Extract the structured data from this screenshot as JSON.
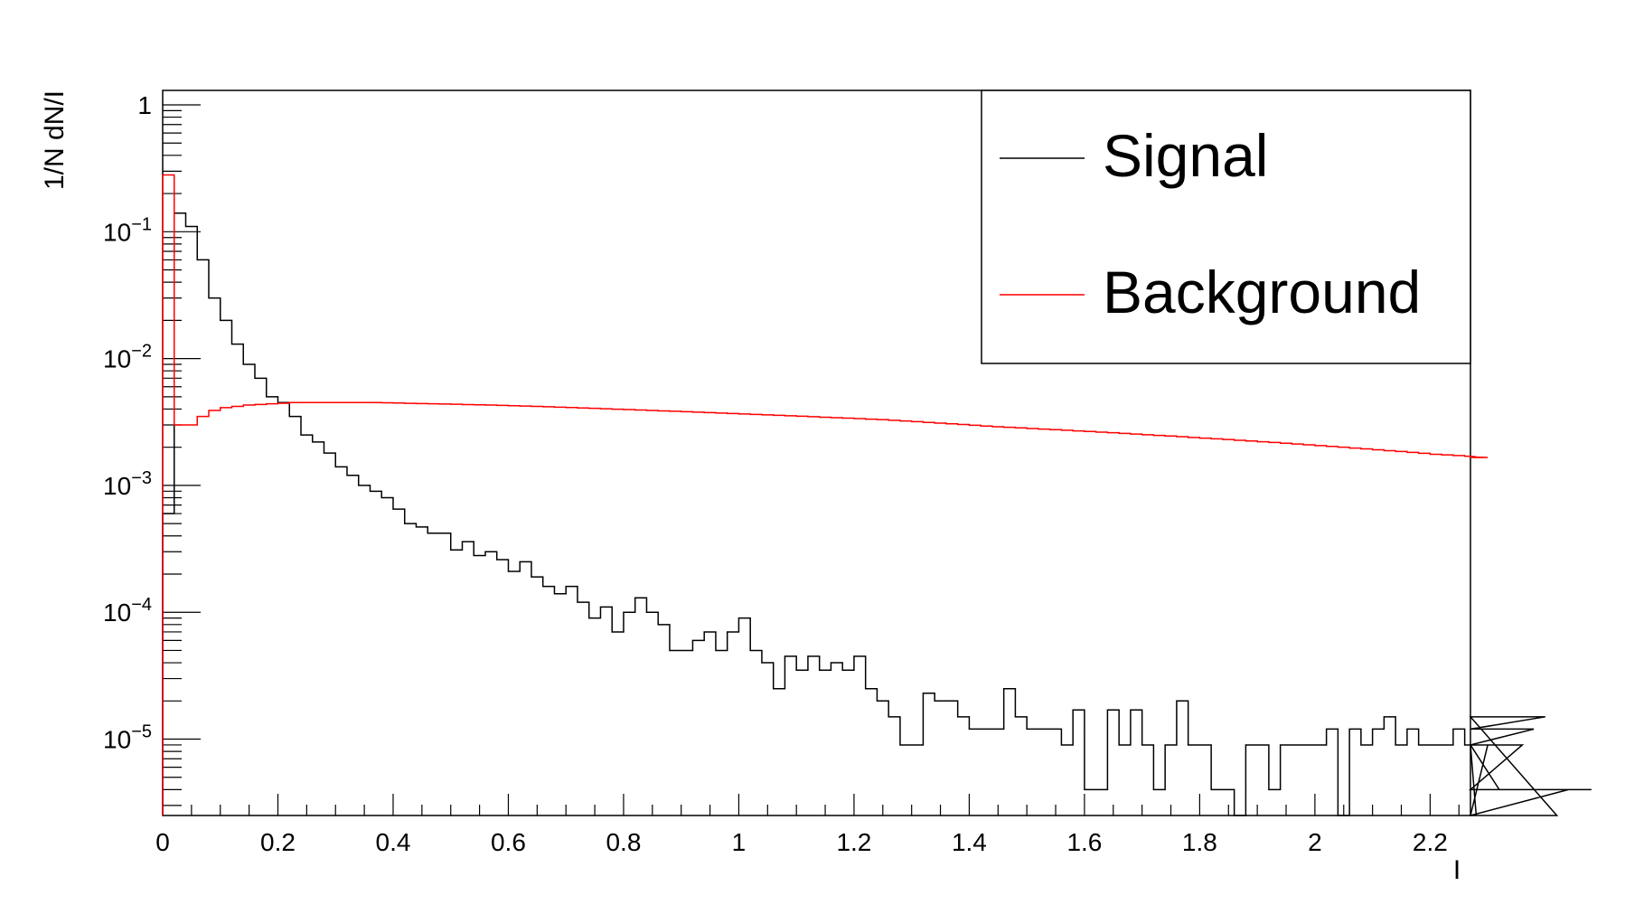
{
  "chart_data": {
    "type": "line",
    "xlabel": "I",
    "ylabel": "1/N dN/I",
    "xlim": [
      0,
      2.27
    ],
    "ylim": [
      2.5e-06,
      1.3
    ],
    "yscale": "log",
    "grid": false,
    "legend_position": "top-right",
    "x_ticks": [
      {
        "v": 0,
        "label": "0"
      },
      {
        "v": 0.2,
        "label": "0.2"
      },
      {
        "v": 0.4,
        "label": "0.4"
      },
      {
        "v": 0.6,
        "label": "0.6"
      },
      {
        "v": 0.8,
        "label": "0.8"
      },
      {
        "v": 1.0,
        "label": "1"
      },
      {
        "v": 1.2,
        "label": "1.2"
      },
      {
        "v": 1.4,
        "label": "1.4"
      },
      {
        "v": 1.6,
        "label": "1.6"
      },
      {
        "v": 1.8,
        "label": "1.8"
      },
      {
        "v": 2.0,
        "label": "2"
      },
      {
        "v": 2.2,
        "label": "2.2"
      }
    ],
    "y_ticks": [
      {
        "v": 1,
        "base": "1",
        "exp": ""
      },
      {
        "v": 0.1,
        "base": "10",
        "exp": "−1"
      },
      {
        "v": 0.01,
        "base": "10",
        "exp": "−2"
      },
      {
        "v": 0.001,
        "base": "10",
        "exp": "−3"
      },
      {
        "v": 0.0001,
        "base": "10",
        "exp": "−4"
      },
      {
        "v": 1e-05,
        "base": "10",
        "exp": "−5"
      }
    ],
    "bin_width": 0.02,
    "series": [
      {
        "name": "Signal",
        "color": "#000000",
        "style": "step",
        "values": [
          0.0006,
          0.14,
          0.11,
          0.06,
          0.03,
          0.02,
          0.013,
          0.009,
          0.007,
          0.005,
          0.0045,
          0.0035,
          0.0025,
          0.0022,
          0.0018,
          0.0014,
          0.0012,
          0.001,
          0.0009,
          0.0008,
          0.00065,
          0.0005,
          0.00047,
          0.00042,
          0.00042,
          0.00031,
          0.00036,
          0.00028,
          0.0003,
          0.00026,
          0.00021,
          0.00025,
          0.00019,
          0.00016,
          0.00014,
          0.00016,
          0.00012,
          9e-05,
          0.00011,
          7e-05,
          0.0001,
          0.00013,
          0.0001,
          8e-05,
          5e-05,
          5e-05,
          6e-05,
          7e-05,
          5e-05,
          7e-05,
          9e-05,
          5e-05,
          4e-05,
          2.5e-05,
          4.5e-05,
          3.5e-05,
          4.5e-05,
          3.5e-05,
          4e-05,
          3.5e-05,
          4.5e-05,
          2.5e-05,
          2e-05,
          1.5e-05,
          9e-06,
          9e-06,
          2.3e-05,
          2e-05,
          2e-05,
          1.5e-05,
          1.2e-05,
          1.2e-05,
          1.2e-05,
          2.5e-05,
          1.5e-05,
          1.2e-05,
          1.2e-05,
          1.2e-05,
          9e-06,
          1.7e-05,
          4e-06,
          4e-06,
          1.7e-05,
          9e-06,
          1.7e-05,
          9e-06,
          4e-06,
          9e-06,
          2e-05,
          9e-06,
          9e-06,
          4e-06,
          4e-06,
          1.7e-06,
          9e-06,
          9e-06,
          4e-06,
          9e-06,
          9e-06,
          9e-06,
          9e-06,
          1.2e-05,
          1.7e-06,
          1.2e-05,
          9e-06,
          1.2e-05,
          1.5e-05,
          9e-06,
          1.2e-05,
          9e-06,
          9e-06,
          9e-06,
          1.2e-05,
          9e-06,
          1.7e-06,
          9e-06,
          4e-06,
          4e-06,
          9e-06,
          1.2e-05,
          1.5e-05,
          2e-06,
          4e-06,
          4e-06,
          4e-06
        ]
      },
      {
        "name": "Background",
        "color": "#ff0000",
        "style": "step",
        "values": [
          0.28,
          0.003,
          0.003,
          0.0035,
          0.0039,
          0.0041,
          0.0042,
          0.0043,
          0.00435,
          0.0044,
          0.00445,
          0.0045,
          0.0045,
          0.0045,
          0.0045,
          0.0045,
          0.0045,
          0.0045,
          0.0045,
          0.00448,
          0.00446,
          0.00444,
          0.00442,
          0.0044,
          0.00438,
          0.00436,
          0.00434,
          0.00432,
          0.0043,
          0.00428,
          0.00425,
          0.00422,
          0.0042,
          0.00417,
          0.00414,
          0.00411,
          0.00408,
          0.00405,
          0.00402,
          0.00399,
          0.00396,
          0.00393,
          0.0039,
          0.00387,
          0.00384,
          0.00381,
          0.00378,
          0.00375,
          0.00372,
          0.00369,
          0.00366,
          0.00363,
          0.0036,
          0.00357,
          0.00354,
          0.00351,
          0.00348,
          0.00345,
          0.00342,
          0.00339,
          0.00336,
          0.00333,
          0.0033,
          0.00326,
          0.00322,
          0.00318,
          0.00314,
          0.0031,
          0.00306,
          0.00302,
          0.00298,
          0.00294,
          0.0029,
          0.00287,
          0.00284,
          0.00281,
          0.00278,
          0.00275,
          0.00272,
          0.00269,
          0.00266,
          0.00263,
          0.0026,
          0.00257,
          0.00254,
          0.00251,
          0.00248,
          0.00245,
          0.00242,
          0.00239,
          0.00236,
          0.00233,
          0.0023,
          0.00227,
          0.00224,
          0.00221,
          0.00218,
          0.00215,
          0.00212,
          0.00209,
          0.00206,
          0.00203,
          0.002,
          0.00197,
          0.00194,
          0.00191,
          0.00188,
          0.00185,
          0.00182,
          0.00179,
          0.00176,
          0.00174,
          0.00172,
          0.0017,
          0.00168,
          0.00166
        ]
      }
    ]
  }
}
